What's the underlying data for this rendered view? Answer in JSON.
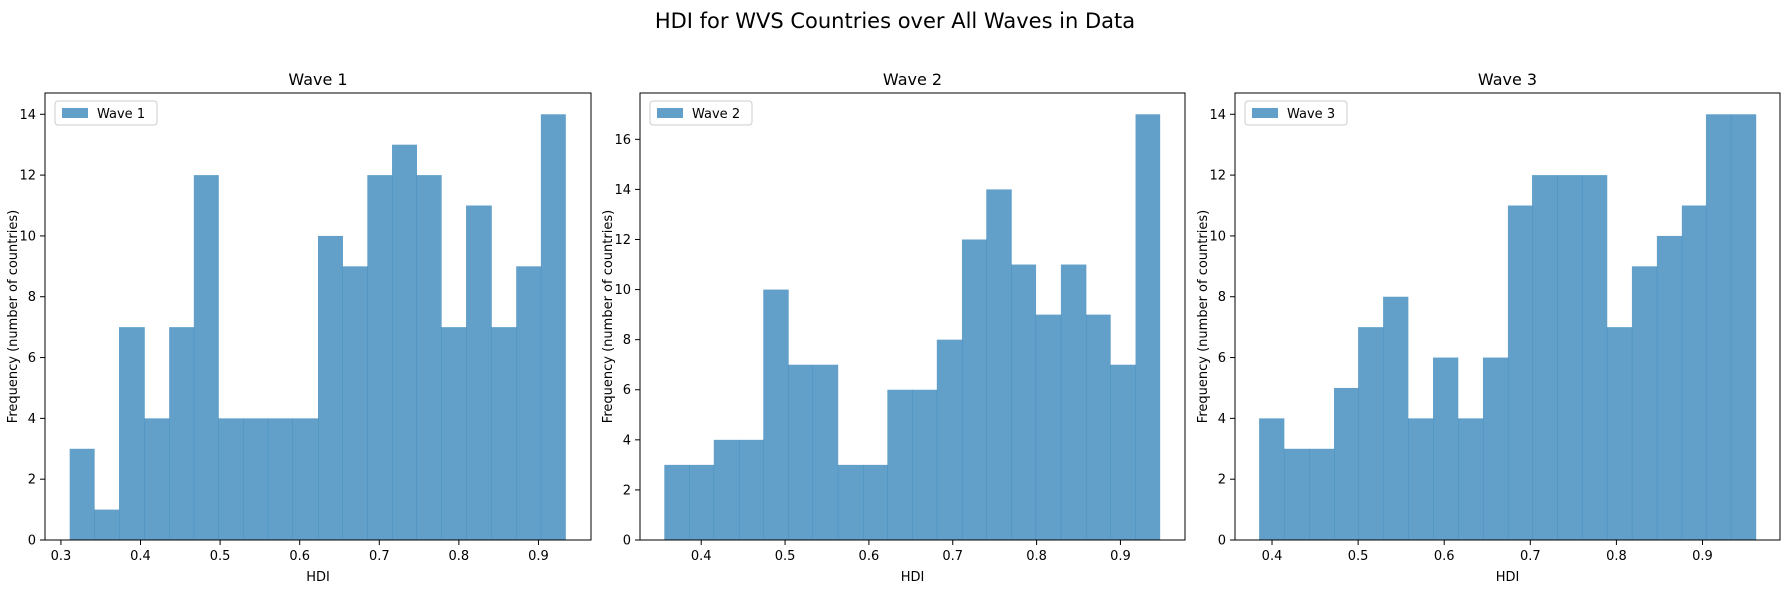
{
  "figure_title": "HDI for WVS Countries over All Waves in Data",
  "colors": {
    "bar": "#1f77b4",
    "bar_opacity": 0.7,
    "axis": "#000000",
    "legend_border": "#cccccc"
  },
  "chart_data": [
    {
      "type": "bar",
      "subtype": "histogram",
      "title": "Wave 1",
      "xlabel": "HDI",
      "ylabel": "Frequency (number of countries)",
      "legend": {
        "label": "Wave 1",
        "placement": "upper-left"
      },
      "xlim": [
        0.28,
        0.966
      ],
      "ylim": [
        0,
        14.7
      ],
      "xticks": [
        0.3,
        0.4,
        0.5,
        0.6,
        0.7,
        0.8,
        0.9
      ],
      "xtick_labels": [
        "0.3",
        "0.4",
        "0.5",
        "0.6",
        "0.7",
        "0.8",
        "0.9"
      ],
      "yticks": [
        0,
        2,
        4,
        6,
        8,
        10,
        12,
        14
      ],
      "ytick_labels": [
        "0",
        "2",
        "4",
        "6",
        "8",
        "10",
        "12",
        "14"
      ],
      "bin_edges": [
        0.311,
        0.342,
        0.373,
        0.405,
        0.436,
        0.467,
        0.498,
        0.529,
        0.56,
        0.591,
        0.623,
        0.654,
        0.685,
        0.716,
        0.747,
        0.778,
        0.809,
        0.841,
        0.872,
        0.903,
        0.934
      ],
      "counts": [
        3,
        1,
        7,
        4,
        7,
        12,
        4,
        4,
        4,
        4,
        10,
        9,
        12,
        13,
        12,
        7,
        11,
        7,
        9,
        14
      ]
    },
    {
      "type": "bar",
      "subtype": "histogram",
      "title": "Wave 2",
      "xlabel": "HDI",
      "ylabel": "Frequency (number of countries)",
      "legend": {
        "label": "Wave 2",
        "placement": "upper-left"
      },
      "xlim": [
        0.327,
        0.977
      ],
      "ylim": [
        0,
        17.85
      ],
      "xticks": [
        0.4,
        0.5,
        0.6,
        0.7,
        0.8,
        0.9
      ],
      "xtick_labels": [
        "0.4",
        "0.5",
        "0.6",
        "0.7",
        "0.8",
        "0.9"
      ],
      "yticks": [
        0,
        2,
        4,
        6,
        8,
        10,
        12,
        14,
        16
      ],
      "ytick_labels": [
        "0",
        "2",
        "4",
        "6",
        "8",
        "10",
        "12",
        "14",
        "16"
      ],
      "bin_edges": [
        0.356,
        0.386,
        0.415,
        0.445,
        0.474,
        0.504,
        0.533,
        0.563,
        0.593,
        0.622,
        0.652,
        0.681,
        0.711,
        0.74,
        0.77,
        0.799,
        0.829,
        0.859,
        0.888,
        0.918,
        0.947
      ],
      "counts": [
        3,
        3,
        4,
        4,
        10,
        7,
        7,
        3,
        3,
        6,
        6,
        8,
        12,
        14,
        11,
        9,
        11,
        9,
        7,
        17
      ]
    },
    {
      "type": "bar",
      "subtype": "histogram",
      "title": "Wave 3",
      "xlabel": "HDI",
      "ylabel": "Frequency (number of countries)",
      "legend": {
        "label": "Wave 3",
        "placement": "upper-left"
      },
      "xlim": [
        0.357,
        0.99
      ],
      "ylim": [
        0,
        14.7
      ],
      "xticks": [
        0.4,
        0.5,
        0.6,
        0.7,
        0.8,
        0.9
      ],
      "xtick_labels": [
        "0.4",
        "0.5",
        "0.6",
        "0.7",
        "0.8",
        "0.9"
      ],
      "yticks": [
        0,
        2,
        4,
        6,
        8,
        10,
        12,
        14
      ],
      "ytick_labels": [
        "0",
        "2",
        "4",
        "6",
        "8",
        "10",
        "12",
        "14"
      ],
      "bin_edges": [
        0.385,
        0.414,
        0.443,
        0.472,
        0.5,
        0.529,
        0.558,
        0.587,
        0.616,
        0.645,
        0.674,
        0.702,
        0.731,
        0.76,
        0.789,
        0.818,
        0.847,
        0.876,
        0.904,
        0.933,
        0.962
      ],
      "counts": [
        4,
        3,
        3,
        5,
        7,
        8,
        4,
        6,
        4,
        6,
        11,
        12,
        12,
        12,
        7,
        9,
        10,
        11,
        14,
        14
      ]
    }
  ]
}
